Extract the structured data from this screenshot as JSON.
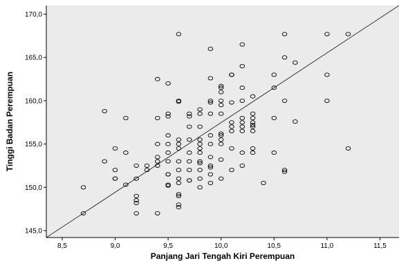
{
  "colors": {
    "plot_background": "#ebebeb",
    "point_stroke": "#000000",
    "line": "#333333",
    "axis": "#000000"
  },
  "chart_data": {
    "type": "scatter",
    "title": "",
    "xlabel": "Panjang Jari Tengah Kiri Perempuan",
    "ylabel": "Tinggi Badan Perempuan",
    "xlim": [
      8.35,
      11.68
    ],
    "ylim": [
      144.2,
      171.0
    ],
    "x_ticks": [
      "8,5",
      "9,0",
      "9,5",
      "10,0",
      "10,5",
      "11,0",
      "11,5"
    ],
    "x_tick_values": [
      8.5,
      9.0,
      9.5,
      10.0,
      10.5,
      11.0,
      11.5
    ],
    "y_ticks": [
      "145,0",
      "150,0",
      "155,0",
      "160,0",
      "165,0",
      "170,0"
    ],
    "y_tick_values": [
      145,
      150,
      155,
      160,
      165,
      170
    ],
    "grid": false,
    "marker": "open-circle",
    "fit_line": {
      "x": [
        8.35,
        11.68
      ],
      "y": [
        144.2,
        171.0
      ]
    },
    "series": [
      {
        "points": [
          [
            8.7,
            150.0
          ],
          [
            8.7,
            147.0
          ],
          [
            8.9,
            158.8
          ],
          [
            8.9,
            153.0
          ],
          [
            9.0,
            154.5
          ],
          [
            9.0,
            152.0
          ],
          [
            9.0,
            151.0
          ],
          [
            9.0,
            151.0
          ],
          [
            9.1,
            158.0
          ],
          [
            9.1,
            154.0
          ],
          [
            9.1,
            150.3
          ],
          [
            9.2,
            152.5
          ],
          [
            9.2,
            151.0
          ],
          [
            9.2,
            149.0
          ],
          [
            9.2,
            148.5
          ],
          [
            9.2,
            148.2
          ],
          [
            9.2,
            147.0
          ],
          [
            9.3,
            152.5
          ],
          [
            9.3,
            152.0
          ],
          [
            9.4,
            162.5
          ],
          [
            9.4,
            158.0
          ],
          [
            9.4,
            155.0
          ],
          [
            9.4,
            153.5
          ],
          [
            9.4,
            153.0
          ],
          [
            9.4,
            152.5
          ],
          [
            9.4,
            147.0
          ],
          [
            9.5,
            162.0
          ],
          [
            9.5,
            158.5
          ],
          [
            9.5,
            158.2
          ],
          [
            9.5,
            156.0
          ],
          [
            9.5,
            155.0
          ],
          [
            9.5,
            154.0
          ],
          [
            9.5,
            153.0
          ],
          [
            9.5,
            151.5
          ],
          [
            9.5,
            151.5
          ],
          [
            9.5,
            150.3
          ],
          [
            9.5,
            150.2
          ],
          [
            9.6,
            167.7
          ],
          [
            9.6,
            160.0
          ],
          [
            9.6,
            159.9
          ],
          [
            9.6,
            155.5
          ],
          [
            9.6,
            155.0
          ],
          [
            9.6,
            154.5
          ],
          [
            9.6,
            153.0
          ],
          [
            9.6,
            152.0
          ],
          [
            9.6,
            151.0
          ],
          [
            9.6,
            150.5
          ],
          [
            9.6,
            149.2
          ],
          [
            9.6,
            149.0
          ],
          [
            9.6,
            148.0
          ],
          [
            9.6,
            147.7
          ],
          [
            9.7,
            158.5
          ],
          [
            9.7,
            158.2
          ],
          [
            9.7,
            157.0
          ],
          [
            9.7,
            155.5
          ],
          [
            9.7,
            154.0
          ],
          [
            9.7,
            153.0
          ],
          [
            9.7,
            152.0
          ],
          [
            9.7,
            150.8
          ],
          [
            9.7,
            150.8
          ],
          [
            9.8,
            159.0
          ],
          [
            9.8,
            158.5
          ],
          [
            9.8,
            157.0
          ],
          [
            9.8,
            155.5
          ],
          [
            9.8,
            155.0
          ],
          [
            9.8,
            154.5
          ],
          [
            9.8,
            154.0
          ],
          [
            9.8,
            153.0
          ],
          [
            9.8,
            152.8
          ],
          [
            9.8,
            152.0
          ],
          [
            9.8,
            151.0
          ],
          [
            9.8,
            150.0
          ],
          [
            9.9,
            166.0
          ],
          [
            9.9,
            162.6
          ],
          [
            9.9,
            160.0
          ],
          [
            9.9,
            159.8
          ],
          [
            9.9,
            158.5
          ],
          [
            9.9,
            156.0
          ],
          [
            9.9,
            155.0
          ],
          [
            9.9,
            153.5
          ],
          [
            9.9,
            152.5
          ],
          [
            9.9,
            152.3
          ],
          [
            9.9,
            151.5
          ],
          [
            9.9,
            150.5
          ],
          [
            10.0,
            161.7
          ],
          [
            10.0,
            161.5
          ],
          [
            10.0,
            161.0
          ],
          [
            10.0,
            160.0
          ],
          [
            10.0,
            159.5
          ],
          [
            10.0,
            158.5
          ],
          [
            10.0,
            156.2
          ],
          [
            10.0,
            156.0
          ],
          [
            10.0,
            155.5
          ],
          [
            10.0,
            155.0
          ],
          [
            10.0,
            153.2
          ],
          [
            10.0,
            151.0
          ],
          [
            10.1,
            163.0
          ],
          [
            10.1,
            163.0
          ],
          [
            10.1,
            159.8
          ],
          [
            10.1,
            157.5
          ],
          [
            10.1,
            157.0
          ],
          [
            10.1,
            156.5
          ],
          [
            10.1,
            154.5
          ],
          [
            10.1,
            152.0
          ],
          [
            10.2,
            166.5
          ],
          [
            10.2,
            164.0
          ],
          [
            10.2,
            161.5
          ],
          [
            10.2,
            160.0
          ],
          [
            10.2,
            158.0
          ],
          [
            10.2,
            157.5
          ],
          [
            10.2,
            157.0
          ],
          [
            10.2,
            156.5
          ],
          [
            10.2,
            154.0
          ],
          [
            10.2,
            152.5
          ],
          [
            10.3,
            160.5
          ],
          [
            10.3,
            158.5
          ],
          [
            10.3,
            158.0
          ],
          [
            10.3,
            157.5
          ],
          [
            10.3,
            157.2
          ],
          [
            10.3,
            157.0
          ],
          [
            10.3,
            156.5
          ],
          [
            10.3,
            154.5
          ],
          [
            10.3,
            154.0
          ],
          [
            10.4,
            150.5
          ],
          [
            10.5,
            163.0
          ],
          [
            10.5,
            161.5
          ],
          [
            10.5,
            158.0
          ],
          [
            10.5,
            154.0
          ],
          [
            10.6,
            167.7
          ],
          [
            10.6,
            165.0
          ],
          [
            10.6,
            160.0
          ],
          [
            10.6,
            152.0
          ],
          [
            10.6,
            151.8
          ],
          [
            10.7,
            164.4
          ],
          [
            10.7,
            157.6
          ],
          [
            11.0,
            167.7
          ],
          [
            11.0,
            163.0
          ],
          [
            11.0,
            160.0
          ],
          [
            11.2,
            167.7
          ],
          [
            11.2,
            154.5
          ]
        ]
      }
    ]
  }
}
